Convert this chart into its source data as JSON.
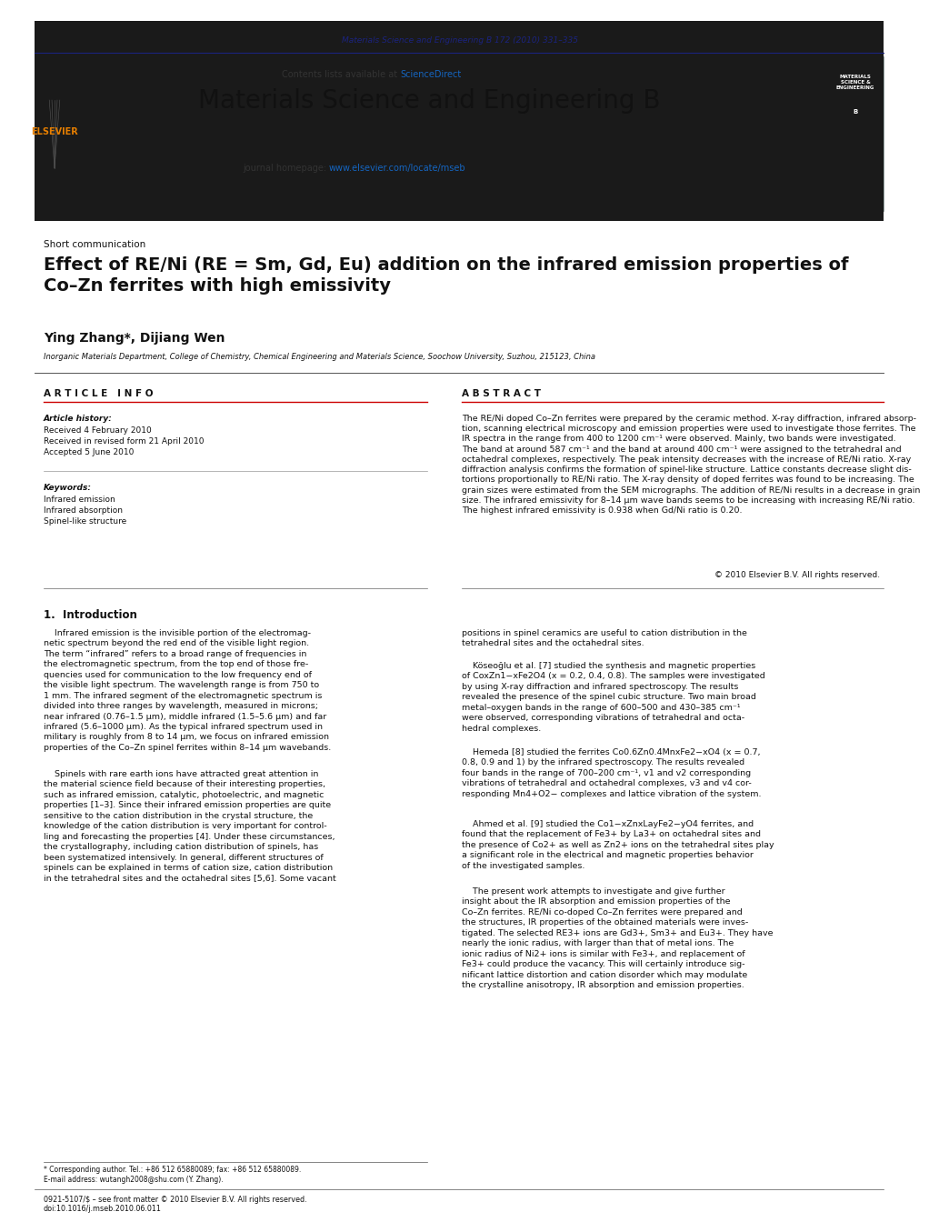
{
  "page_width": 9.92,
  "page_height": 13.23,
  "bg_color": "#ffffff",
  "header_journal_ref": "Materials Science and Engineering B 172 (2010) 331–335",
  "header_journal_ref_color": "#1a237e",
  "journal_name": "Materials Science and Engineering B",
  "contents_text": "Contents lists available at ",
  "sciencedirect_text": "ScienceDirect",
  "sciencedirect_color": "#1565c0",
  "journal_homepage_text": "journal homepage: ",
  "journal_homepage_url": "www.elsevier.com/locate/mseb",
  "journal_homepage_url_color": "#1565c0",
  "header_bg_color": "#e8e8e8",
  "black_bar_color": "#1a1a1a",
  "article_type": "Short communication",
  "title": "Effect of RE/Ni (RE = Sm, Gd, Eu) addition on the infrared emission properties of\nCo–Zn ferrites with high emissivity",
  "authors": "Ying Zhang*, Dijiang Wen",
  "affiliation": "Inorganic Materials Department, College of Chemistry, Chemical Engineering and Materials Science, Soochow University, Suzhou, 215123, China",
  "article_info_title": "A R T I C L E   I N F O",
  "abstract_title": "A B S T R A C T",
  "article_history_label": "Article history:",
  "received1": "Received 4 February 2010",
  "received2": "Received in revised form 21 April 2010",
  "accepted": "Accepted 5 June 2010",
  "keywords_label": "Keywords:",
  "keywords": [
    "Infrared emission",
    "Infrared absorption",
    "Spinel-like structure"
  ],
  "abstract_text": "The RE/Ni doped Co–Zn ferrites were prepared by the ceramic method. X-ray diffraction, infrared absorp-\ntion, scanning electrical microscopy and emission properties were used to investigate those ferrites. The\nIR spectra in the range from 400 to 1200 cm⁻¹ were observed. Mainly, two bands were investigated.\nThe band at around 587 cm⁻¹ and the band at around 400 cm⁻¹ were assigned to the tetrahedral and\noctahedral complexes, respectively. The peak intensity decreases with the increase of RE/Ni ratio. X-ray\ndiffraction analysis confirms the formation of spinel-like structure. Lattice constants decrease slight dis-\ntortions proportionally to RE/Ni ratio. The X-ray density of doped ferrites was found to be increasing. The\ngrain sizes were estimated from the SEM micrographs. The addition of RE/Ni results in a decrease in grain\nsize. The infrared emissivity for 8–14 μm wave bands seems to be increasing with increasing RE/Ni ratio.\nThe highest infrared emissivity is 0.938 when Gd/Ni ratio is 0.20.",
  "copyright_text": "© 2010 Elsevier B.V. All rights reserved.",
  "section1_title": "1.  Introduction",
  "section1_col1_para1": "    Infrared emission is the invisible portion of the electromag-\nnetic spectrum beyond the red end of the visible light region.\nThe term “infrared” refers to a broad range of frequencies in\nthe electromagnetic spectrum, from the top end of those fre-\nquencies used for communication to the low frequency end of\nthe visible light spectrum. The wavelength range is from 750 to\n1 mm. The infrared segment of the electromagnetic spectrum is\ndivided into three ranges by wavelength, measured in microns;\nnear infrared (0.76–1.5 μm), middle infrared (1.5–5.6 μm) and far\ninfrared (5.6–1000 μm). As the typical infrared spectrum used in\nmilitary is roughly from 8 to 14 μm, we focus on infrared emission\nproperties of the Co–Zn spinel ferrites within 8–14 μm wavebands.",
  "section1_col1_para2": "    Spinels with rare earth ions have attracted great attention in\nthe material science field because of their interesting properties,\nsuch as infrared emission, catalytic, photoelectric, and magnetic\nproperties [1–3]. Since their infrared emission properties are quite\nsensitive to the cation distribution in the crystal structure, the\nknowledge of the cation distribution is very important for control-\nling and forecasting the properties [4]. Under these circumstances,\nthe crystallography, including cation distribution of spinels, has\nbeen systematized intensively. In general, different structures of\nspinels can be explained in terms of cation size, cation distribution\nin the tetrahedral sites and the octahedral sites [5,6]. Some vacant",
  "section1_col2_para1": "positions in spinel ceramics are useful to cation distribution in the\ntetrahedral sites and the octahedral sites.",
  "section1_col2_para2": "    Köseoğlu et al. [7] studied the synthesis and magnetic properties\nof CoxZn1−xFe2O4 (x = 0.2, 0.4, 0.8). The samples were investigated\nby using X-ray diffraction and infrared spectroscopy. The results\nrevealed the presence of the spinel cubic structure. Two main broad\nmetal–oxygen bands in the range of 600–500 and 430–385 cm⁻¹\nwere observed, corresponding vibrations of tetrahedral and octa-\nhedral complexes.",
  "section1_col2_para3": "    Hemeda [8] studied the ferrites Co0.6Zn0.4MnxFe2−xO4 (x = 0.7,\n0.8, 0.9 and 1) by the infrared spectroscopy. The results revealed\nfour bands in the range of 700–200 cm⁻¹, v1 and v2 corresponding\nvibrations of tetrahedral and octahedral complexes, v3 and v4 cor-\nresponding Mn4+O2− complexes and lattice vibration of the system.",
  "section1_col2_para4": "    Ahmed et al. [9] studied the Co1−xZnxLayFe2−yO4 ferrites, and\nfound that the replacement of Fe3+ by La3+ on octahedral sites and\nthe presence of Co2+ as well as Zn2+ ions on the tetrahedral sites play\na significant role in the electrical and magnetic properties behavior\nof the investigated samples.",
  "section1_col2_para5": "    The present work attempts to investigate and give further\ninsight about the IR absorption and emission properties of the\nCo–Zn ferrites. RE/Ni co-doped Co–Zn ferrites were prepared and\nthe structures, IR properties of the obtained materials were inves-\ntigated. The selected RE3+ ions are Gd3+, Sm3+ and Eu3+. They have\nnearly the ionic radius, with larger than that of metal ions. The\nionic radius of Ni2+ ions is similar with Fe3+, and replacement of\nFe3+ could produce the vacancy. This will certainly introduce sig-\nnificant lattice distortion and cation disorder which may modulate\nthe crystalline anisotropy, IR absorption and emission properties.",
  "footer_note": "* Corresponding author. Tel.: +86 512 65880089; fax: +86 512 65880089.",
  "footer_email": "E-mail address: wutangh2008@shu.com (Y. Zhang).",
  "footer_text": "0921-5107/$ – see front matter © 2010 Elsevier B.V. All rights reserved.",
  "footer_doi": "doi:10.1016/j.mseb.2010.06.011",
  "elsevier_color": "#e67e00",
  "cover_teal": "#6dbfb8",
  "cover_pink": "#c8436a",
  "cover_green": "#5a8a3c",
  "cover_yellow": "#d4a832",
  "title_font_size": 14,
  "journal_name_font_size": 20
}
